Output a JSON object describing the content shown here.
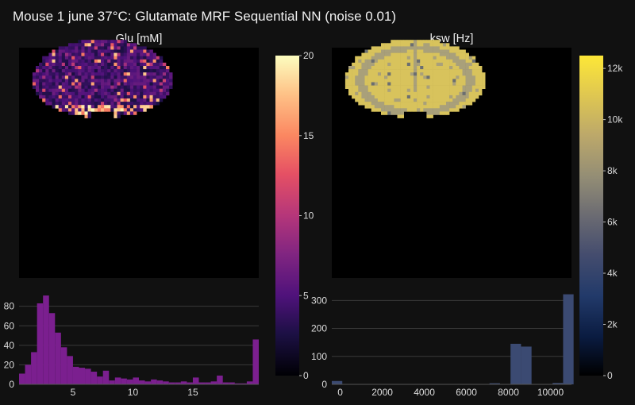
{
  "title": "Mouse 1 june 37°C: Glutamate MRF Sequential NN (noise 0.01)",
  "panels": {
    "glu": {
      "title": "Glu [mM]"
    },
    "ksw": {
      "title": "ksw [Hz]"
    }
  },
  "colors": {
    "background": "#111111",
    "plot_bg": "#000000",
    "glu_hist_bar": "#7b1f8f",
    "ksw_hist_bar": "#3b4a72",
    "gridline": "#3a3a3a"
  },
  "chart_data": [
    {
      "type": "heatmap",
      "name": "glu-map",
      "colorscale": "magma",
      "colorbar": {
        "range": [
          0,
          20
        ],
        "ticks": [
          0,
          5,
          10,
          15,
          20
        ],
        "tick_labels": [
          "0",
          "5",
          "10",
          "15",
          "20"
        ]
      }
    },
    {
      "type": "heatmap",
      "name": "ksw-map",
      "colorscale": "cividis",
      "colorbar": {
        "range": [
          0,
          12500
        ],
        "ticks": [
          0,
          2000,
          4000,
          6000,
          8000,
          10000,
          12000
        ],
        "tick_labels": [
          "0",
          "2k",
          "4k",
          "6k",
          "8k",
          "10k",
          "12k"
        ]
      }
    },
    {
      "type": "bar",
      "name": "glu-histogram",
      "bin_start": 0.5,
      "bin_width": 0.5,
      "values": [
        11,
        20,
        33,
        83,
        91,
        73,
        53,
        38,
        29,
        18,
        17,
        16,
        13,
        8,
        14,
        4,
        7,
        6,
        5,
        7,
        4,
        3,
        5,
        4,
        3,
        2,
        2,
        3,
        2,
        7,
        2,
        2,
        3,
        9,
        2,
        2,
        1,
        1,
        3,
        46
      ],
      "xlim": [
        0.5,
        20.5
      ],
      "ylim": [
        0,
        96
      ],
      "xticks": [
        5,
        10,
        15
      ],
      "yticks": [
        0,
        20,
        40,
        60,
        80
      ]
    },
    {
      "type": "bar",
      "name": "ksw-histogram",
      "bin_start": -400,
      "bin_width": 500,
      "values": [
        12,
        0,
        0,
        0,
        0,
        0,
        0,
        0,
        0,
        0,
        0,
        0,
        0,
        0,
        0,
        4,
        0,
        145,
        135,
        0,
        0,
        5,
        322
      ],
      "xlim": [
        -400,
        11000
      ],
      "ylim": [
        0,
        335
      ],
      "xticks": [
        0,
        2000,
        4000,
        6000,
        8000,
        10000
      ],
      "yticks": [
        0,
        100,
        200,
        300
      ]
    }
  ]
}
